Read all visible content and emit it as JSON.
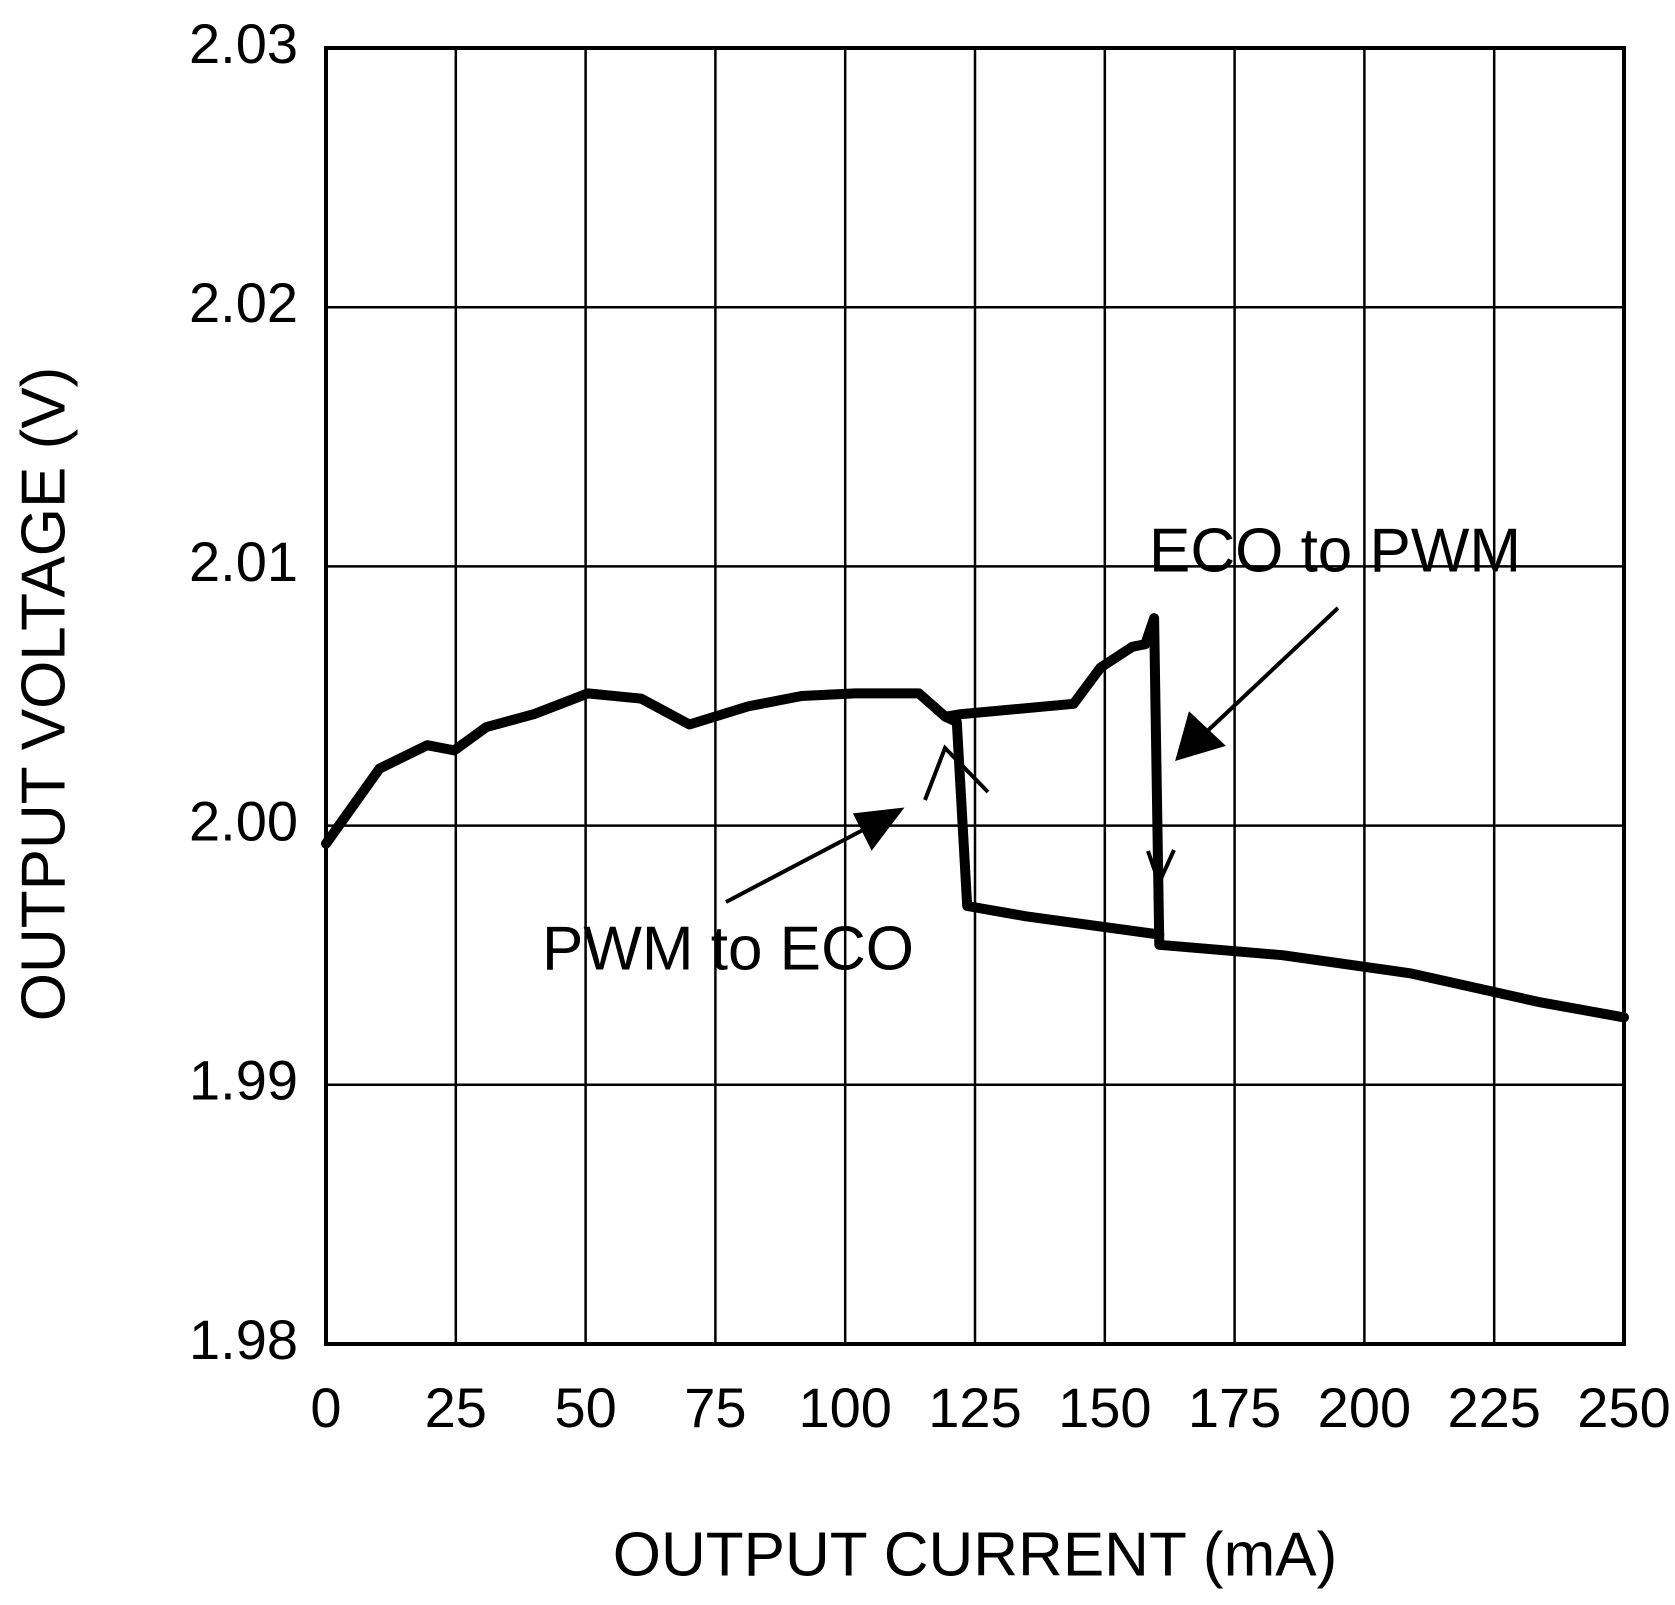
{
  "chart_data": {
    "type": "line",
    "x_label": "OUTPUT CURRENT (mA)",
    "y_label": "OUTPUT VOLTAGE (V)",
    "annotations": [
      "ECO to PWM",
      "PWM to ECO"
    ],
    "xlim": [
      0,
      250
    ],
    "xticks": [
      0,
      25,
      50,
      75,
      100,
      125,
      150,
      175,
      200,
      225,
      250
    ],
    "ylim": [
      1.98,
      2.03
    ],
    "yticks": [
      1.98,
      1.99,
      {
        "value": 2,
        "label": "2.00"
      },
      2.01,
      2.02,
      2.03
    ],
    "grid": true,
    "series": [
      {
        "color": "#000000",
        "x": [
          0,
          10.3,
          19.5,
          24.7,
          30.9,
          40.1,
          50.4,
          60.7,
          70,
          81.3,
          91.6,
          101.9,
          114.2,
          119.3,
          122.4,
          144,
          149.2,
          155.3,
          157.8,
          159.5,
          160.5,
          184.2,
          208.8,
          233.5,
          250
        ],
        "values": [
          1.9993,
          2.0022,
          2.0031,
          2.0029,
          2.0038,
          2.0043,
          2.0051,
          2.0049,
          2.0039,
          2.0046,
          2.005,
          2.0051,
          2.0051,
          2.0042,
          2.0043,
          2.0047,
          2.0061,
          2.0069,
          2.007,
          2.008,
          1.9954,
          1.995,
          1.9943,
          1.9932,
          1.9926
        ]
      },
      {
        "color": "#000000",
        "x": [
          119.3,
          121.5,
          123.5,
          134.8,
          160.5
        ],
        "values": [
          2.0042,
          2.004,
          1.9969,
          1.9965,
          1.9958
        ]
      }
    ]
  }
}
